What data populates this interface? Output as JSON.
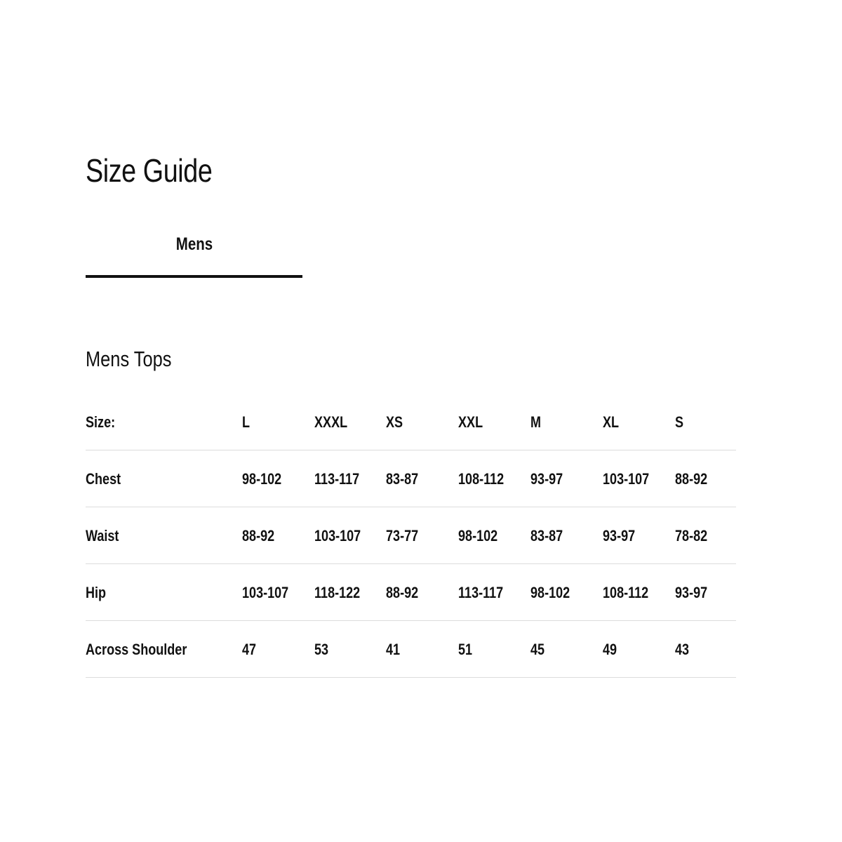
{
  "title": "Size Guide",
  "tabs": [
    {
      "label": "Mens",
      "active": true
    }
  ],
  "section_title": "Mens Tops",
  "table": {
    "header_label": "Size:",
    "sizes": [
      "L",
      "XXXL",
      "XS",
      "XXL",
      "M",
      "XL",
      "S"
    ],
    "rows": [
      {
        "label": "Chest",
        "values": [
          "98-102",
          "113-117",
          "83-87",
          "108-112",
          "93-97",
          "103-107",
          "88-92"
        ]
      },
      {
        "label": "Waist",
        "values": [
          "88-92",
          "103-107",
          "73-77",
          "98-102",
          "83-87",
          "93-97",
          "78-82"
        ]
      },
      {
        "label": "Hip",
        "values": [
          "103-107",
          "118-122",
          "88-92",
          "113-117",
          "98-102",
          "108-112",
          "93-97"
        ]
      },
      {
        "label": "Across Shoulder",
        "values": [
          "47",
          "53",
          "41",
          "51",
          "45",
          "49",
          "43"
        ]
      }
    ]
  }
}
